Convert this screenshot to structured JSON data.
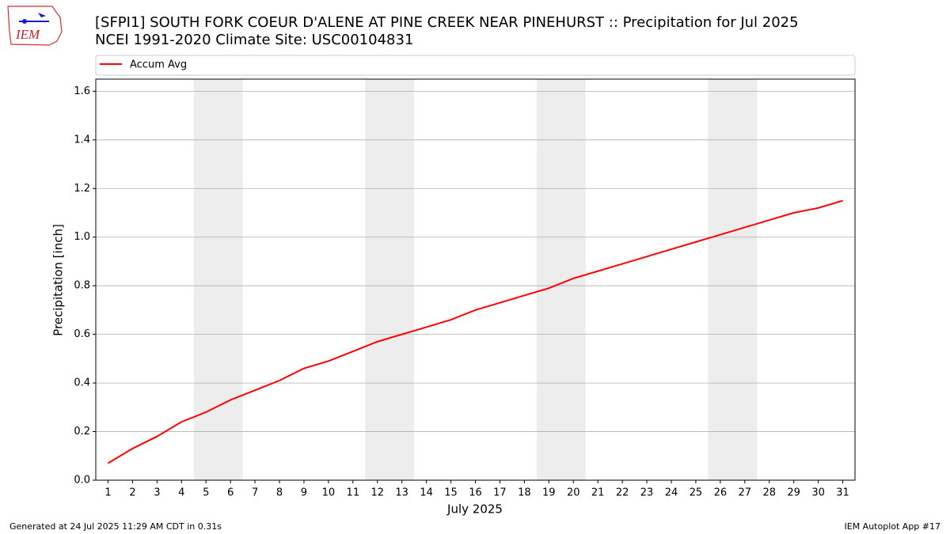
{
  "chart_data": {
    "type": "line",
    "title": "[SFPI1] SOUTH FORK COEUR D'ALENE  AT PINE CREEK NEAR PINEHURST :: Precipitation for Jul 2025",
    "subtitle": "NCEI 1991-2020 Climate Site: USC00104831",
    "x_label": "July 2025",
    "y_label": "Precipitation [inch]",
    "x": [
      1,
      2,
      3,
      4,
      5,
      6,
      7,
      8,
      9,
      10,
      11,
      12,
      13,
      14,
      15,
      16,
      17,
      18,
      19,
      20,
      21,
      22,
      23,
      24,
      25,
      26,
      27,
      28,
      29,
      30,
      31
    ],
    "series": [
      {
        "name": "Accum Avg",
        "color": "#ff0000",
        "values": [
          0.07,
          0.13,
          0.18,
          0.24,
          0.28,
          0.33,
          0.37,
          0.41,
          0.46,
          0.49,
          0.53,
          0.57,
          0.6,
          0.63,
          0.66,
          0.7,
          0.73,
          0.76,
          0.79,
          0.83,
          0.86,
          0.89,
          0.92,
          0.95,
          0.98,
          1.01,
          1.04,
          1.07,
          1.1,
          1.12,
          1.15
        ]
      }
    ],
    "weekend_spans": [
      [
        4.5,
        6.5
      ],
      [
        11.5,
        13.5
      ],
      [
        18.5,
        20.5
      ],
      [
        25.5,
        27.5
      ]
    ],
    "xlim": [
      0.5,
      31.5
    ],
    "xticks": [
      1,
      2,
      3,
      4,
      5,
      6,
      7,
      8,
      9,
      10,
      11,
      12,
      13,
      14,
      15,
      16,
      17,
      18,
      19,
      20,
      21,
      22,
      23,
      24,
      25,
      26,
      27,
      28,
      29,
      30,
      31
    ],
    "ylim": [
      0,
      1.65
    ],
    "yticks": [
      {
        "value": 0,
        "label": "0.0"
      },
      0.2,
      0.4,
      0.6,
      0.8,
      {
        "value": 1,
        "label": "1.0"
      },
      1.2,
      1.4,
      1.6
    ],
    "grid": true,
    "legend": "top"
  },
  "logo": "IEM",
  "footer_left": "Generated at 24 Jul 2025 11:29 AM CDT in 0.31s",
  "footer_right": "IEM Autoplot App #17"
}
